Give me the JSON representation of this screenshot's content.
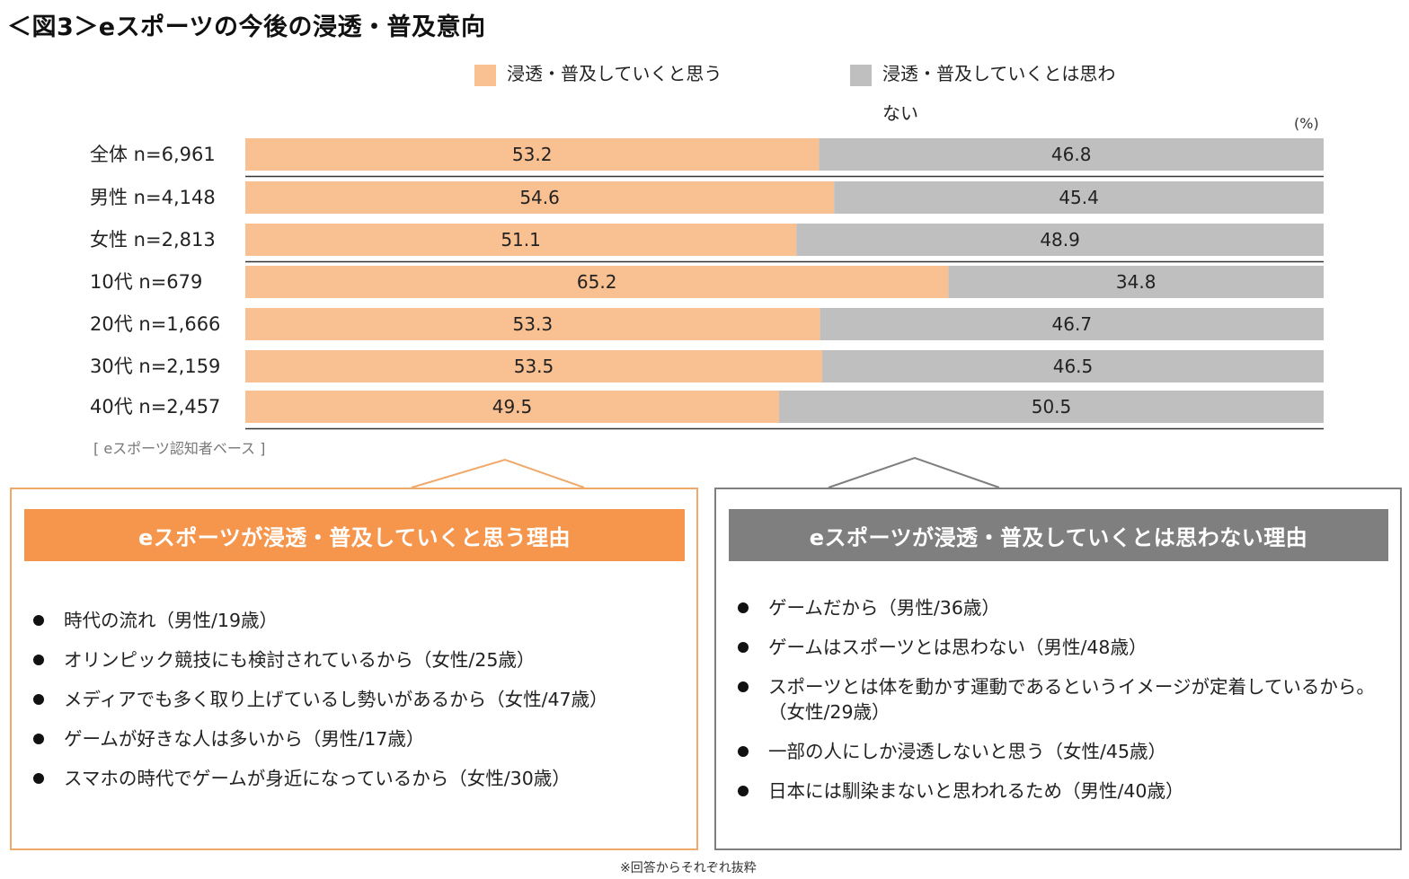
{
  "title": "＜図3＞eスポーツの今後の浸透・普及意向",
  "legend": [
    {
      "label": "浸透・普及していくと思う",
      "color": "#f9c092"
    },
    {
      "label": "浸透・普及していくとは思わない",
      "color": "#bfbfbf"
    }
  ],
  "unit": "(%)",
  "base_note": "[ eスポーツ認知者ベース ]",
  "chart_data": {
    "type": "bar",
    "orientation": "horizontal",
    "stacked": true,
    "percent": true,
    "categories": [
      "全体 n=6,961",
      "男性 n=4,148",
      "女性 n=2,813",
      "10代 n=679",
      "20代 n=1,666",
      "30代 n=2,159",
      "40代 n=2,457"
    ],
    "series": [
      {
        "name": "浸透・普及していくと思う",
        "color": "#f9c092",
        "values": [
          53.2,
          54.6,
          51.1,
          65.2,
          53.3,
          53.5,
          49.5
        ]
      },
      {
        "name": "浸透・普及していくとは思わない",
        "color": "#bfbfbf",
        "values": [
          46.8,
          45.4,
          48.9,
          34.8,
          46.7,
          46.5,
          50.5
        ]
      }
    ],
    "xlim": [
      0,
      100
    ],
    "group_separators_after": [
      0,
      2
    ]
  },
  "positive_panel": {
    "header": "eスポーツが浸透・普及していくと思う理由",
    "border_color": "#f0a96a",
    "header_color": "#f5964c",
    "reasons": [
      "時代の流れ（男性/19歳）",
      "オリンピック競技にも検討されているから（女性/25歳）",
      "メディアでも多く取り上げているし勢いがあるから（女性/47歳）",
      "ゲームが好きな人は多いから（男性/17歳）",
      "スマホの時代でゲームが身近になっているから（女性/30歳）"
    ]
  },
  "negative_panel": {
    "header": "eスポーツが浸透・普及していくとは思わない理由",
    "border_color": "#7f7f7f",
    "header_color": "#7f7f7f",
    "reasons": [
      "ゲームだから（男性/36歳）",
      "ゲームはスポーツとは思わない（男性/48歳）",
      "スポーツとは体を動かす運動であるというイメージが定着しているから。（女性/29歳）",
      "一部の人にしか浸透しないと思う（女性/45歳）",
      "日本には馴染まないと思われるため（男性/40歳）"
    ]
  },
  "footnote": "※回答からそれぞれ抜粋"
}
